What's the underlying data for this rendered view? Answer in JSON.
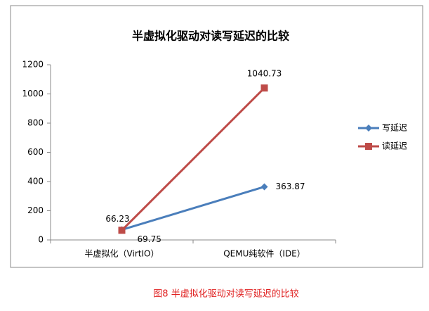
{
  "chart_data": {
    "type": "line",
    "title": "半虚拟化驱动对读写延迟的比较",
    "categories": [
      "半虚拟化（VirtIO）",
      "QEMU纯软件（IDE）"
    ],
    "series": [
      {
        "name": "写延迟",
        "color": "#4a7ebb",
        "marker": "diamond",
        "values": [
          69.75,
          363.87
        ]
      },
      {
        "name": "读延迟",
        "color": "#be4b48",
        "marker": "square",
        "values": [
          66.23,
          1040.73
        ]
      }
    ],
    "ylim": [
      0,
      1200
    ],
    "yticks": [
      0,
      200,
      400,
      600,
      800,
      1000,
      1200
    ],
    "grid": false,
    "legend": "right"
  },
  "caption": "图8 半虚拟化驱动对读写延迟的比较"
}
